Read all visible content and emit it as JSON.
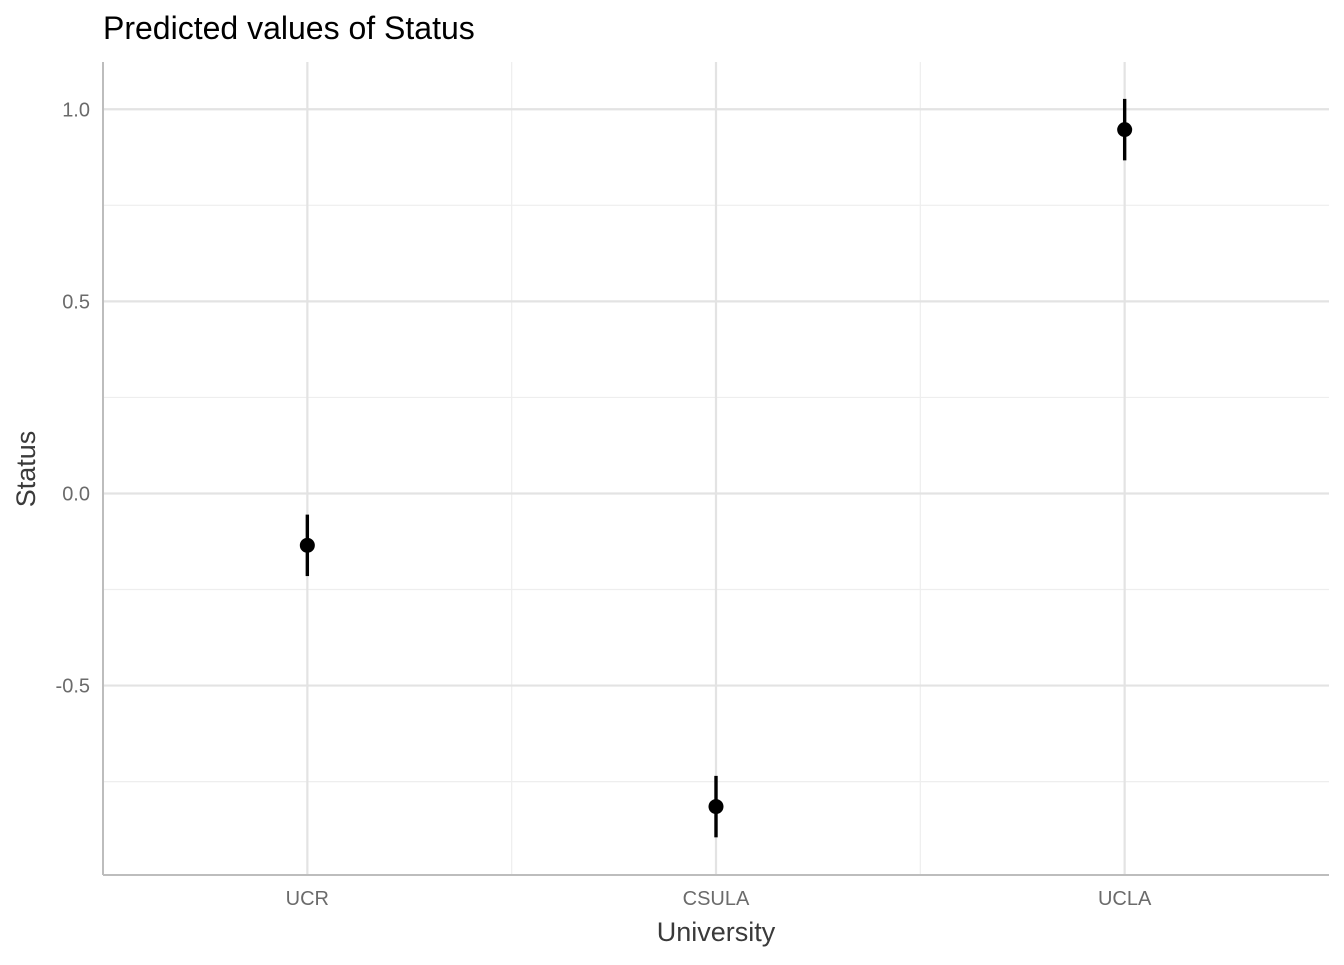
{
  "chart_data": {
    "type": "scatter",
    "title": "Predicted values of Status",
    "xlabel": "University",
    "ylabel": "Status",
    "categories": [
      "UCR",
      "CSULA",
      "UCLA"
    ],
    "series": [
      {
        "values": [
          -0.135,
          -0.815,
          0.947
        ],
        "ci_low": [
          -0.215,
          -0.895,
          0.867
        ],
        "ci_high": [
          -0.055,
          -0.735,
          1.027
        ]
      }
    ],
    "ylim": [
      -0.993,
      1.123
    ],
    "yticks": [
      1.0,
      0.5,
      0.0,
      -0.5
    ],
    "ytick_labels": [
      "1.0",
      "0.5",
      "0.0",
      "-0.5"
    ],
    "grid": true,
    "legend": "none",
    "colors": {
      "point": "#000000",
      "grid_major": "#e3e3e3",
      "grid_minor": "#eeeeee",
      "axis_line": "#bdbdbd",
      "tick_text": "#6b6b6b",
      "axis_title": "#3a3a3a",
      "title": "#000000"
    }
  }
}
